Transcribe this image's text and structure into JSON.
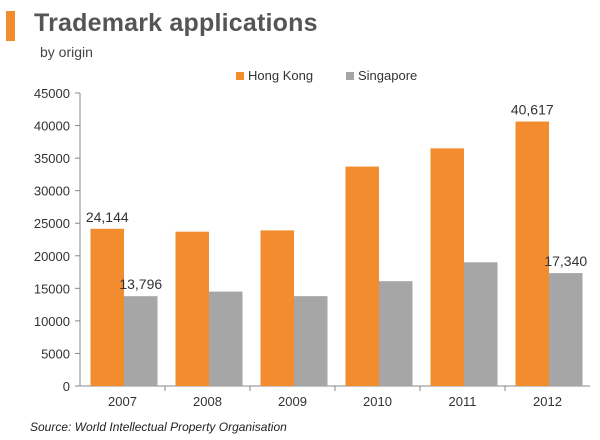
{
  "header": {
    "title": "Trademark applications",
    "subtitle": "by origin"
  },
  "footer": {
    "source": "Source: World Intellectual Property Organisation"
  },
  "colors": {
    "hong_kong": "#f28c2e",
    "singapore": "#a6a6a6",
    "accent": "#f28c2e"
  },
  "chart_data": {
    "type": "bar",
    "title": "Trademark applications",
    "subtitle": "by origin",
    "xlabel": "",
    "ylabel": "",
    "categories": [
      "2007",
      "2008",
      "2009",
      "2010",
      "2011",
      "2012"
    ],
    "series": [
      {
        "name": "Hong Kong",
        "color": "#f28c2e",
        "values": [
          24144,
          23700,
          23900,
          33700,
          36500,
          40617
        ]
      },
      {
        "name": "Singapore",
        "color": "#a6a6a6",
        "values": [
          13796,
          14500,
          13800,
          16100,
          19000,
          17340
        ]
      }
    ],
    "data_labels": [
      {
        "series": 0,
        "index": 0,
        "text": "24,144"
      },
      {
        "series": 1,
        "index": 0,
        "text": "13,796"
      },
      {
        "series": 0,
        "index": 5,
        "text": "40,617"
      },
      {
        "series": 1,
        "index": 5,
        "text": "17,340"
      }
    ],
    "ylim": [
      0,
      45000
    ],
    "yticks": [
      0,
      5000,
      10000,
      15000,
      20000,
      25000,
      30000,
      35000,
      40000,
      45000
    ],
    "grid": false,
    "legend": "top-center"
  }
}
